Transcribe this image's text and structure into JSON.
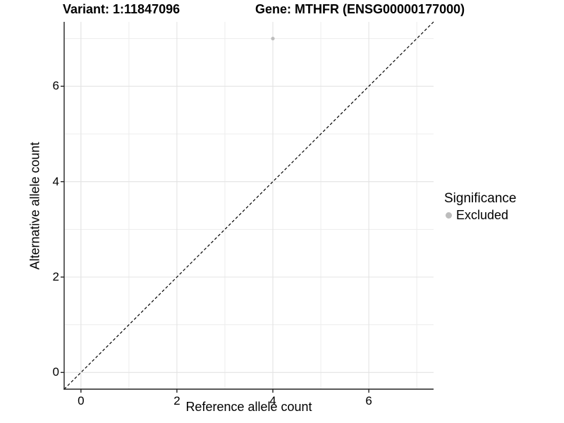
{
  "chart_data": {
    "type": "scatter",
    "title_left": "Variant: 1:11847096",
    "title_right": "Gene: MTHFR (ENSG00000177000)",
    "xlabel": "Reference allele count",
    "ylabel": "Alternative allele count",
    "xlim": [
      -0.35,
      7.35
    ],
    "ylim": [
      -0.35,
      7.35
    ],
    "x_ticks": [
      0,
      2,
      4,
      6
    ],
    "y_ticks": [
      0,
      2,
      4,
      6
    ],
    "x_minor_gridlines": [
      1,
      3,
      5,
      7
    ],
    "y_minor_gridlines": [
      1,
      3,
      5,
      7
    ],
    "grid": "on",
    "points": [
      {
        "x": 4,
        "y": 7,
        "series": "Excluded"
      }
    ],
    "reference_line": {
      "type": "identity",
      "style": "dashed"
    },
    "legend": {
      "title": "Significance",
      "position": "right",
      "items": [
        {
          "label": "Excluded",
          "color": "#bdbdbd",
          "marker": "circle"
        }
      ]
    }
  },
  "colors": {
    "background": "#ffffff",
    "grid_major": "#e3e3e3",
    "grid_minor": "#ededed",
    "axis_line": "#222222",
    "reference_line": "#000000",
    "point": "#bdbdbd",
    "text": "#000000"
  }
}
